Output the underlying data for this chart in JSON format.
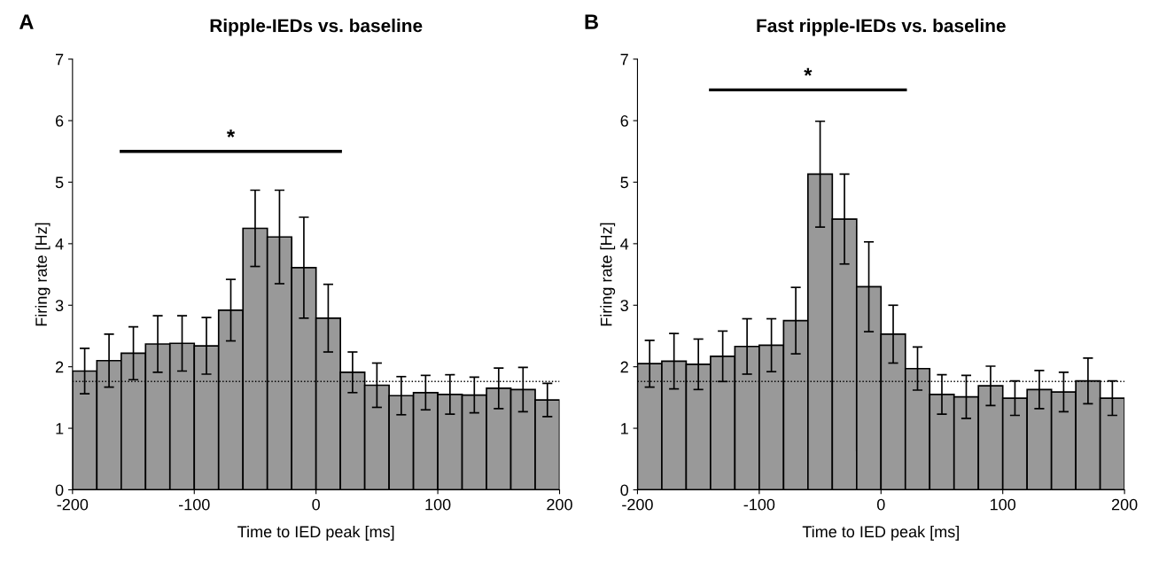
{
  "chart_data": [
    {
      "type": "histogram",
      "title": "Ripple-IEDs vs. baseline",
      "xlabel": "Time to IED peak [ms]",
      "ylabel": "Firing rate [Hz]",
      "bins": [
        -200,
        -180,
        -160,
        -140,
        -120,
        -100,
        -80,
        -60,
        -40,
        -20,
        0,
        20,
        40,
        60,
        80,
        100,
        120,
        140,
        160,
        180,
        200
      ],
      "values": [
        1.93,
        2.1,
        2.22,
        2.37,
        2.38,
        2.34,
        2.92,
        4.25,
        4.11,
        3.61,
        2.79,
        1.91,
        1.7,
        1.53,
        1.58,
        1.55,
        1.54,
        1.65,
        1.63,
        1.46
      ],
      "errors": [
        0.37,
        0.43,
        0.43,
        0.46,
        0.45,
        0.46,
        0.5,
        0.62,
        0.76,
        0.82,
        0.55,
        0.33,
        0.36,
        0.31,
        0.28,
        0.32,
        0.29,
        0.33,
        0.36,
        0.27
      ],
      "color": "#999999",
      "xlim": [
        -200,
        200
      ],
      "xticks": [
        -200,
        -100,
        0,
        100,
        200
      ],
      "ylim": [
        0,
        7
      ],
      "yticks": [
        0,
        1,
        2,
        3,
        4,
        5,
        6,
        7
      ],
      "ref_lines": [
        {
          "axis": "y",
          "value": 1.76,
          "label": null,
          "color": "#000000",
          "line_style": "dotted"
        }
      ],
      "series": [
        {
          "type": "line",
          "x": [
            -160,
            20
          ],
          "values": [
            5.5,
            5.5
          ],
          "color": "#000000"
        }
      ],
      "annotations": [
        "A",
        {
          "text": "*",
          "x": -70,
          "y": 5.5
        }
      ],
      "grid": false,
      "legend": false
    },
    {
      "type": "histogram",
      "title": "Fast ripple-IEDs vs. baseline",
      "xlabel": "Time to IED peak [ms]",
      "ylabel": "Firing rate [Hz]",
      "bins": [
        -200,
        -180,
        -160,
        -140,
        -120,
        -100,
        -80,
        -60,
        -40,
        -20,
        0,
        20,
        40,
        60,
        80,
        100,
        120,
        140,
        160,
        180,
        200
      ],
      "values": [
        2.05,
        2.09,
        2.04,
        2.17,
        2.33,
        2.35,
        2.75,
        5.13,
        4.4,
        3.3,
        2.53,
        1.97,
        1.55,
        1.51,
        1.69,
        1.49,
        1.63,
        1.59,
        1.77,
        1.49
      ],
      "errors": [
        0.38,
        0.45,
        0.41,
        0.41,
        0.45,
        0.43,
        0.54,
        0.86,
        0.73,
        0.73,
        0.47,
        0.35,
        0.32,
        0.35,
        0.32,
        0.28,
        0.31,
        0.32,
        0.37,
        0.28
      ],
      "color": "#999999",
      "xlim": [
        -200,
        200
      ],
      "xticks": [
        -200,
        -100,
        0,
        100,
        200
      ],
      "ylim": [
        0,
        7
      ],
      "yticks": [
        0,
        1,
        2,
        3,
        4,
        5,
        6,
        7
      ],
      "ref_lines": [
        {
          "axis": "y",
          "value": 1.76,
          "label": null,
          "color": "#000000",
          "line_style": "dotted"
        }
      ],
      "series": [
        {
          "type": "line",
          "x": [
            -140,
            20
          ],
          "values": [
            6.5,
            6.5
          ],
          "color": "#000000"
        }
      ],
      "annotations": [
        "B",
        {
          "text": "*",
          "x": -60,
          "y": 6.5
        }
      ],
      "grid": false,
      "legend": false
    }
  ]
}
